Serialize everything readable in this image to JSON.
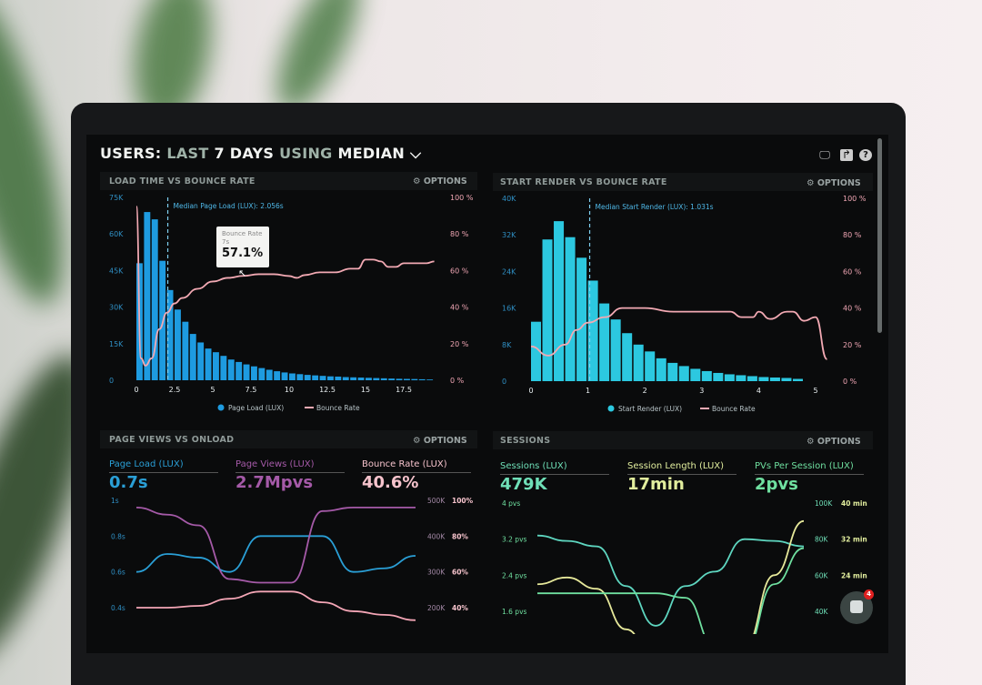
{
  "header": {
    "title_parts": [
      "USERS:",
      "LAST",
      "7 DAYS",
      "USING",
      "MEDIAN"
    ],
    "toolbar_icons": [
      "monitor-icon",
      "share-icon",
      "help-icon"
    ]
  },
  "panels": {
    "load_time": {
      "title": "LOAD TIME VS BOUNCE RATE",
      "options": "OPTIONS"
    },
    "start_render": {
      "title": "START RENDER VS BOUNCE RATE",
      "options": "OPTIONS"
    },
    "page_views": {
      "title": "PAGE VIEWS VS ONLOAD",
      "options": "OPTIONS",
      "metrics": [
        {
          "label": "Page Load (LUX)",
          "value": "0.7s",
          "color": "#2a9fd6"
        },
        {
          "label": "Page Views (LUX)",
          "value": "2.7Mpvs",
          "color": "#a55aa8"
        },
        {
          "label": "Bounce Rate (LUX)",
          "value": "40.6%",
          "color": "#f6c3cc"
        }
      ]
    },
    "sessions": {
      "title": "SESSIONS",
      "options": "OPTIONS",
      "metrics": [
        {
          "label": "Sessions (LUX)",
          "value": "479K",
          "color": "#6fe0b8"
        },
        {
          "label": "Session Length (LUX)",
          "value": "17min",
          "color": "#e2ee9e"
        },
        {
          "label": "PVs Per Session (LUX)",
          "value": "2pvs",
          "color": "#6fe0a0"
        }
      ]
    }
  },
  "tooltip": {
    "title": "Bounce Rate",
    "x": "7s",
    "value": "57.1%"
  },
  "chat": {
    "badge": "4"
  },
  "colors": {
    "bars1": "#1e9be0",
    "bars2": "#2cc8e0",
    "bounce": "#f2a9b3",
    "background": "#0a0b0c"
  },
  "chart_data": [
    {
      "type": "bar",
      "title": "LOAD TIME VS BOUNCE RATE",
      "annotation": "Median Page Load (LUX): 2.056s",
      "median": 2.056,
      "xticks": [
        "0",
        "2.5",
        "5",
        "7.5",
        "10",
        "12.5",
        "15",
        "17.5"
      ],
      "xlim": [
        0,
        19.5
      ],
      "yticks_left": [
        "0",
        "15K",
        "30K",
        "45K",
        "60K",
        "75K"
      ],
      "ylim_left": [
        0,
        75000
      ],
      "yticks_right": [
        "0 %",
        "20 %",
        "40 %",
        "60 %",
        "80 %",
        "100 %"
      ],
      "ylim_right": [
        0,
        100
      ],
      "legend": [
        "Page Load (LUX)",
        "Bounce Rate"
      ],
      "legend_placement": "bottom",
      "bar_width": 0.5,
      "bars": [
        48000,
        69000,
        66000,
        49000,
        37000,
        29000,
        24000,
        19000,
        15500,
        13000,
        11500,
        10000,
        8500,
        7500,
        6500,
        5700,
        5000,
        4300,
        3700,
        3200,
        2800,
        2500,
        2200,
        2000,
        1800,
        1600,
        1500,
        1300,
        1200,
        1100,
        1000,
        900,
        800,
        700,
        600,
        550,
        500,
        400,
        300
      ],
      "line": [
        [
          0,
          95
        ],
        [
          0.3,
          12
        ],
        [
          0.6,
          8
        ],
        [
          1,
          12
        ],
        [
          1.5,
          28
        ],
        [
          2,
          37
        ],
        [
          2.5,
          42
        ],
        [
          3,
          45
        ],
        [
          4,
          50
        ],
        [
          5,
          54
        ],
        [
          6,
          56
        ],
        [
          7,
          57.1
        ],
        [
          8,
          58
        ],
        [
          9,
          58
        ],
        [
          10,
          57
        ],
        [
          10.5,
          56
        ],
        [
          11,
          57.5
        ],
        [
          12,
          59
        ],
        [
          13,
          59
        ],
        [
          14,
          61
        ],
        [
          14.5,
          61
        ],
        [
          15,
          66
        ],
        [
          15.5,
          66
        ],
        [
          16,
          65
        ],
        [
          16.5,
          62
        ],
        [
          17,
          62
        ],
        [
          17.5,
          64
        ],
        [
          18,
          64
        ],
        [
          19,
          64
        ],
        [
          19.5,
          65
        ]
      ]
    },
    {
      "type": "bar",
      "title": "START RENDER VS BOUNCE RATE",
      "annotation": "Median Start Render (LUX): 1.031s",
      "median": 1.031,
      "xticks": [
        "0",
        "1",
        "2",
        "3",
        "4",
        "5"
      ],
      "xlim": [
        0,
        5.2
      ],
      "yticks_left": [
        "0",
        "8K",
        "16K",
        "24K",
        "32K",
        "40K"
      ],
      "ylim_left": [
        0,
        40000
      ],
      "yticks_right": [
        "0 %",
        "20 %",
        "40 %",
        "60 %",
        "80 %",
        "100 %"
      ],
      "ylim_right": [
        0,
        100
      ],
      "legend": [
        "Start Render (LUX)",
        "Bounce Rate"
      ],
      "legend_placement": "bottom",
      "bar_width": 0.2,
      "bars": [
        13000,
        31000,
        35000,
        31500,
        27000,
        22000,
        17000,
        13500,
        10500,
        8000,
        6500,
        5000,
        4000,
        3300,
        2700,
        2200,
        1800,
        1500,
        1300,
        1100,
        900,
        800,
        700,
        500
      ],
      "line": [
        [
          0,
          19
        ],
        [
          0.3,
          14
        ],
        [
          0.6,
          20
        ],
        [
          0.8,
          28
        ],
        [
          1,
          32
        ],
        [
          1.3,
          35
        ],
        [
          1.6,
          40
        ],
        [
          2,
          40
        ],
        [
          2.5,
          38
        ],
        [
          3,
          38
        ],
        [
          3.5,
          38
        ],
        [
          3.7,
          35
        ],
        [
          3.9,
          35
        ],
        [
          4,
          38
        ],
        [
          4.2,
          34
        ],
        [
          4.5,
          38
        ],
        [
          4.6,
          38
        ],
        [
          4.8,
          33
        ],
        [
          5,
          35
        ],
        [
          5.2,
          12
        ]
      ]
    },
    {
      "type": "line",
      "title": "PAGE VIEWS VS ONLOAD",
      "yticks_left": [
        "0.4s",
        "0.6s",
        "0.8s",
        "1s"
      ],
      "ylim_left": [
        0.4,
        1.0
      ],
      "yticks_right_a": [
        "200K",
        "300K",
        "400K",
        "500K"
      ],
      "ylim_right_a": [
        200000,
        500000
      ],
      "yticks_right_b": [
        "40%",
        "60%",
        "80%",
        "100%"
      ],
      "ylim_right_b": [
        40,
        100
      ],
      "series": [
        {
          "name": "Page Load (LUX)",
          "axis": "left",
          "color": "#2a9fd6",
          "values": [
            0.6,
            0.7,
            0.68,
            0.6,
            0.8,
            0.8,
            0.8,
            0.6,
            0.62,
            0.69
          ]
        },
        {
          "name": "Page Views (LUX)",
          "axis": "right_a",
          "color": "#a55aa8",
          "values": [
            480000,
            460000,
            430000,
            280000,
            270000,
            270000,
            470000,
            480000,
            480000,
            480000
          ]
        },
        {
          "name": "Bounce Rate (LUX)",
          "axis": "right_b",
          "color": "#f4a6b6",
          "values": [
            40,
            40,
            41,
            45,
            49,
            49,
            43,
            38,
            36,
            33
          ]
        }
      ]
    },
    {
      "type": "line",
      "title": "SESSIONS",
      "yticks_left": [
        "1.6 pvs",
        "2.4 pvs",
        "3.2 pvs",
        "4 pvs"
      ],
      "ylim_left": [
        1.6,
        4.0
      ],
      "yticks_right_a": [
        "40K",
        "60K",
        "80K",
        "100K"
      ],
      "ylim_right_a": [
        40000,
        100000
      ],
      "yticks_right_b": [
        "24 min",
        "32 min",
        "40 min"
      ],
      "ylim_right_b": [
        16,
        40
      ],
      "series": [
        {
          "name": "Sessions (LUX)",
          "axis": "right_a",
          "color": "#5ed6c0",
          "values": [
            82000,
            79000,
            76000,
            54000,
            32000,
            54000,
            62000,
            80000,
            79000,
            76000
          ]
        },
        {
          "name": "Session Length (LUX)",
          "axis": "right_b",
          "color": "#e6e89a",
          "values": [
            22,
            23.5,
            21,
            12,
            4,
            2,
            2,
            8,
            24,
            36
          ]
        },
        {
          "name": "PVs Per Session (LUX)",
          "axis": "left",
          "color": "#6fe0a0",
          "values": [
            2.0,
            2.0,
            2.0,
            2.0,
            2.0,
            1.9,
            0.8,
            0.7,
            2.2,
            3.0
          ]
        }
      ]
    }
  ]
}
